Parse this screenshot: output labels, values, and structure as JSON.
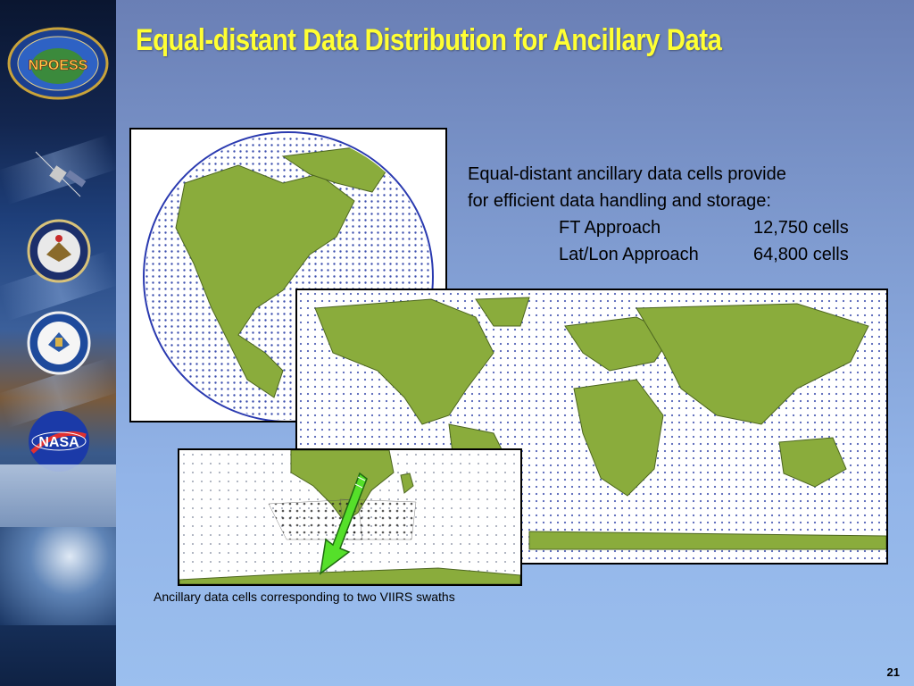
{
  "slide": {
    "title": "Equal-distant Data Distribution for Ancillary Data",
    "intro_line1": "Equal-distant ancillary data cells provide",
    "intro_line2": "for efficient data handling and storage:",
    "approaches": [
      {
        "name": "FT Approach",
        "cells": "12,750 cells"
      },
      {
        "name": "Lat/Lon Approach",
        "cells": "64,800 cells"
      }
    ],
    "caption": "Ancillary data cells corresponding to two VIIRS swaths",
    "page_number": "21"
  },
  "sidebar": {
    "logos": [
      "NPOESS",
      "DEPARTMENT OF DEFENSE",
      "DEPARTMENT OF COMMERCE",
      "NASA"
    ]
  },
  "colors": {
    "title": "#ffff33",
    "land": "#8aac3c",
    "dots": "#1a2fa0",
    "arrow": "#55e02a"
  }
}
